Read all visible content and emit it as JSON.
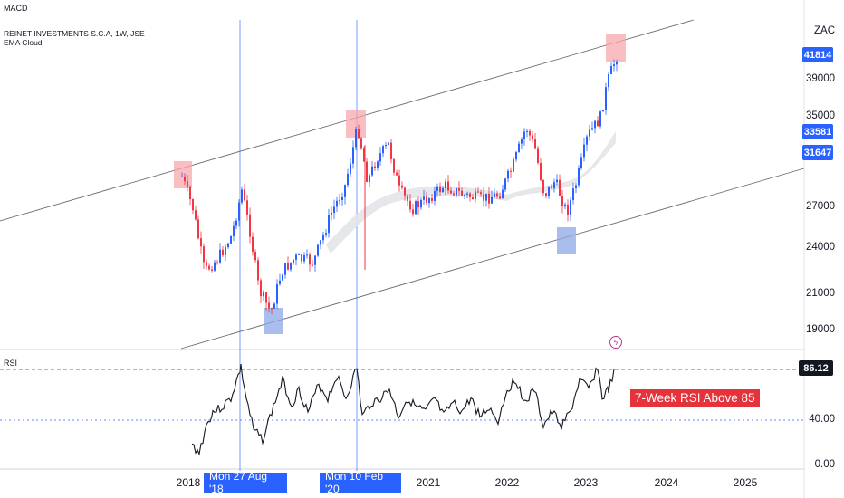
{
  "indicators_top": {
    "macd_label": "MACD"
  },
  "legend": {
    "symbol_line": "REINET INVESTMENTS S.C.A, 1W, JSE",
    "study_line": "EMA Cloud"
  },
  "price_axis": {
    "currency": "ZAC",
    "ticks": [
      "39000",
      "35000",
      "27000",
      "24000",
      "21000",
      "19000"
    ],
    "badges": [
      "41814",
      "33581",
      "31647"
    ]
  },
  "rsi_panel": {
    "label": "RSI",
    "current_value": "86.12",
    "ticks": [
      "40.00",
      "0.00"
    ],
    "annotation": "7-Week RSI Above 85"
  },
  "time_axis": {
    "ticks": [
      "2018",
      "2021",
      "2022",
      "2023",
      "2024",
      "2025"
    ],
    "date_badges": [
      "Mon 27 Aug '18",
      "Mon 10 Feb '20"
    ]
  },
  "colors": {
    "up": "#2962ff",
    "down": "#f23645",
    "highlight_red": "#f7a7ae",
    "highlight_blue": "#8ea8e8",
    "overbought_line": "#f23645",
    "rsi_mid_line": "#2962ff"
  },
  "icons": {
    "lightning": "lightning-icon"
  }
}
